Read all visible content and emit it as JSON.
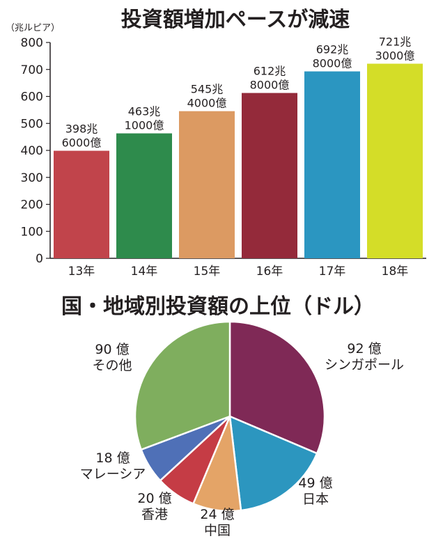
{
  "chart_data": [
    {
      "type": "bar",
      "title": "投資額増加ペースが減速",
      "unit_label": "（兆ルピア）",
      "categories": [
        "13年",
        "14年",
        "15年",
        "16年",
        "17年",
        "18年"
      ],
      "values": [
        398.6,
        463.1,
        545.4,
        612.8,
        692.8,
        721.3
      ],
      "value_labels": [
        [
          "398兆",
          "6000億"
        ],
        [
          "463兆",
          "1000億"
        ],
        [
          "545兆",
          "4000億"
        ],
        [
          "612兆",
          "8000億"
        ],
        [
          "692兆",
          "8000億"
        ],
        [
          "721兆",
          "3000億"
        ]
      ],
      "colors": [
        "#c1444b",
        "#2e8b4c",
        "#dc9a62",
        "#942a3a",
        "#2b96c1",
        "#d4dd28"
      ],
      "yticks": [
        "0",
        "100",
        "200",
        "300",
        "400",
        "500",
        "600",
        "700",
        "800"
      ],
      "ylim": [
        0,
        800
      ],
      "grid": false
    },
    {
      "type": "pie",
      "title": "国・地域別投資額の上位（ドル）",
      "slices": [
        {
          "value": 92,
          "label": [
            "92 億",
            "シンガポール"
          ],
          "color": "#7f2956"
        },
        {
          "value": 49,
          "label": [
            "49 億",
            "日本"
          ],
          "color": "#2c96bf"
        },
        {
          "value": 24,
          "label": [
            "24 億",
            "中国"
          ],
          "color": "#e4a467"
        },
        {
          "value": 20,
          "label": [
            "20 億",
            "香港"
          ],
          "color": "#c53c45"
        },
        {
          "value": 18,
          "label": [
            "18 億",
            "マレーシア"
          ],
          "color": "#4f70b7"
        },
        {
          "value": 90,
          "label": [
            "90 億",
            "その他"
          ],
          "color": "#7fae5e"
        }
      ]
    }
  ]
}
